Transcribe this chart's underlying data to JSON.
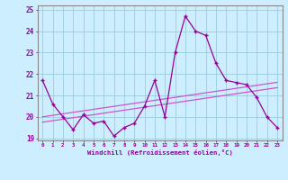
{
  "x": [
    0,
    1,
    2,
    3,
    4,
    5,
    6,
    7,
    8,
    9,
    10,
    11,
    12,
    13,
    14,
    15,
    16,
    17,
    18,
    19,
    20,
    21,
    22,
    23
  ],
  "windchill": [
    21.7,
    20.6,
    20.0,
    19.4,
    20.1,
    19.7,
    19.8,
    19.1,
    19.5,
    19.7,
    20.5,
    21.7,
    20.0,
    23.0,
    24.7,
    24.0,
    23.8,
    22.5,
    21.7,
    21.6,
    21.5,
    20.9,
    20.0,
    19.5
  ],
  "regression_low": [
    19.75,
    19.82,
    19.89,
    19.96,
    20.03,
    20.1,
    20.17,
    20.24,
    20.31,
    20.38,
    20.45,
    20.52,
    20.59,
    20.66,
    20.73,
    20.8,
    20.87,
    20.94,
    21.01,
    21.08,
    21.15,
    21.22,
    21.29,
    21.36
  ],
  "regression_high": [
    20.0,
    20.07,
    20.14,
    20.21,
    20.28,
    20.35,
    20.42,
    20.49,
    20.56,
    20.63,
    20.7,
    20.77,
    20.84,
    20.91,
    20.98,
    21.05,
    21.12,
    21.19,
    21.26,
    21.33,
    21.4,
    21.47,
    21.54,
    21.61
  ],
  "color_line": "#990099",
  "color_regression": "#cc55cc",
  "background": "#cceeff",
  "grid_color": "#99ccdd",
  "ylim": [
    18.9,
    25.2
  ],
  "yticks": [
    19,
    20,
    21,
    22,
    23,
    24,
    25
  ],
  "xlabel": "Windchill (Refroidissement éolien,°C)"
}
